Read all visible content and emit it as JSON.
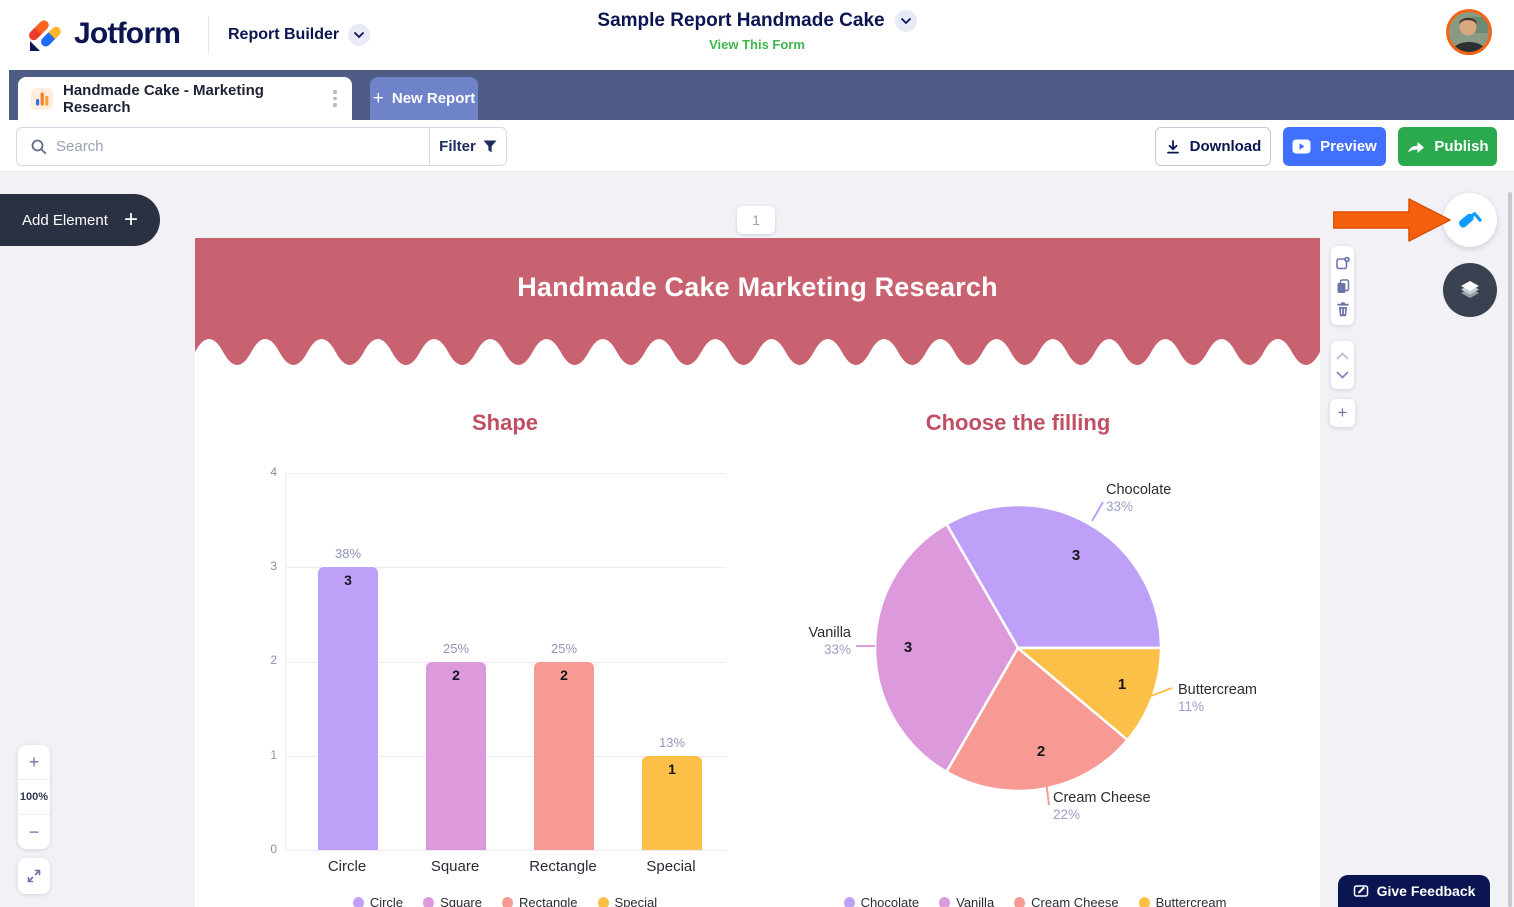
{
  "header": {
    "brand": "Jotform",
    "product": "Report Builder",
    "report_title": "Sample Report Handmade Cake",
    "view_form": "View This Form"
  },
  "tab_bar": {
    "active_tab": "Handmade Cake - Marketing Research",
    "new_report_label": "New Report"
  },
  "toolbar": {
    "search_placeholder": "Search",
    "search_value": "",
    "filter_label": "Filter",
    "download_label": "Download",
    "preview_label": "Preview",
    "publish_label": "Publish"
  },
  "left_panel": {
    "add_element_label": "Add Element"
  },
  "page": {
    "number": "1",
    "banner_title": "Handmade Cake Marketing Research"
  },
  "zoom_controls": {
    "zoom_level": "100%"
  },
  "feedback": {
    "label": "Give Feedback"
  },
  "glyphs": {
    "plus": "+",
    "minus": "−"
  },
  "chart_data": [
    {
      "type": "bar",
      "title": "Shape",
      "categories": [
        "Circle",
        "Square",
        "Rectangle",
        "Special"
      ],
      "values": [
        3,
        2,
        2,
        1
      ],
      "percent_labels": [
        "38%",
        "25%",
        "25%",
        "13%"
      ],
      "colors": [
        "#bfa0f8",
        "#dc99dc",
        "#f79a94",
        "#fcbf47"
      ],
      "ylim": [
        0,
        4
      ],
      "yticks": [
        "4",
        "3",
        "2",
        "1",
        "0"
      ],
      "grid": true,
      "legend": [
        "Circle",
        "Square",
        "Rectangle",
        "Special"
      ],
      "legend_position": "bottom"
    },
    {
      "type": "pie",
      "title": "Choose the filling",
      "categories": [
        "Chocolate",
        "Vanilla",
        "Cream Cheese",
        "Buttercream"
      ],
      "values": [
        3,
        3,
        2,
        1
      ],
      "percent_labels": [
        "33%",
        "33%",
        "22%",
        "11%"
      ],
      "colors": [
        "#bfa0f8",
        "#dc99dc",
        "#f79a94",
        "#fcbf47"
      ],
      "legend": [
        "Chocolate",
        "Vanilla",
        "Cream Cheese",
        "Buttercream"
      ],
      "legend_position": "bottom"
    }
  ],
  "colors": {
    "brand_navy": "#0a1551",
    "link_green": "#3eb54b",
    "tabbar_bg": "#4e5c86",
    "new_tab_bg": "#6f83c9",
    "preview_blue": "#4170ff",
    "publish_green": "#2ba94f",
    "banner_red": "#c86270",
    "chart_title_rose": "#c04f63",
    "annotation_orange": "#f4600e",
    "workspace_bg": "#f1f1f6"
  }
}
